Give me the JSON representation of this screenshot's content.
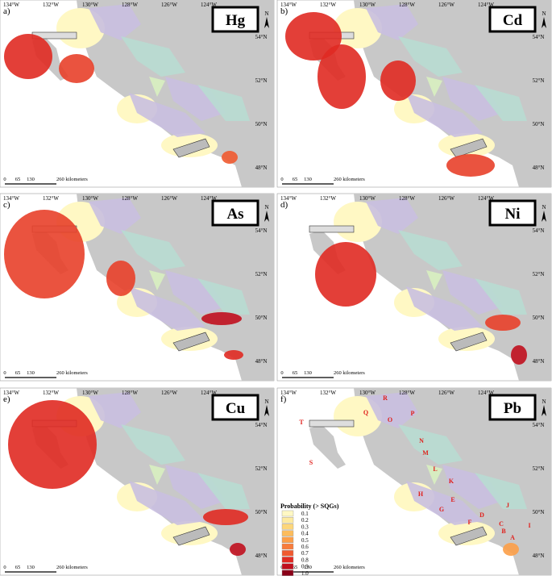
{
  "panels": [
    {
      "letter": "a)",
      "element": "Hg"
    },
    {
      "letter": "b)",
      "element": "Cd"
    },
    {
      "letter": "c)",
      "element": "As"
    },
    {
      "letter": "d)",
      "element": "Ni"
    },
    {
      "letter": "e)",
      "element": "Cu"
    },
    {
      "letter": "f)",
      "element": "Pb"
    }
  ],
  "lon_labels": [
    "134°W",
    "132°W",
    "130°W",
    "128°W",
    "126°W",
    "124°W"
  ],
  "lat_labels": [
    "54°N",
    "52°N",
    "50°N",
    "48°N"
  ],
  "scale_labels": [
    "0",
    "65",
    "130",
    "260 kilometers"
  ],
  "north": "N",
  "legend": {
    "title": "Probability (> SQGs)",
    "items": [
      {
        "label": "0.1",
        "color": "#fff8c4"
      },
      {
        "label": "0.2",
        "color": "#fdeaa0"
      },
      {
        "label": "0.3",
        "color": "#fdd67a"
      },
      {
        "label": "0.4",
        "color": "#fcbc5c"
      },
      {
        "label": "0.5",
        "color": "#fc9e48"
      },
      {
        "label": "0.6",
        "color": "#f87c3c"
      },
      {
        "label": "0.7",
        "color": "#f05a30"
      },
      {
        "label": "0.8",
        "color": "#e02a22"
      },
      {
        "label": "0.9",
        "color": "#c0101e"
      },
      {
        "label": "1.0",
        "color": "#8a0018"
      }
    ]
  },
  "regions": [
    "R",
    "Q",
    "P",
    "O",
    "T",
    "N",
    "M",
    "S",
    "L",
    "K",
    "E",
    "H",
    "J",
    "G",
    "D",
    "F",
    "C",
    "I",
    "B",
    "A"
  ]
}
